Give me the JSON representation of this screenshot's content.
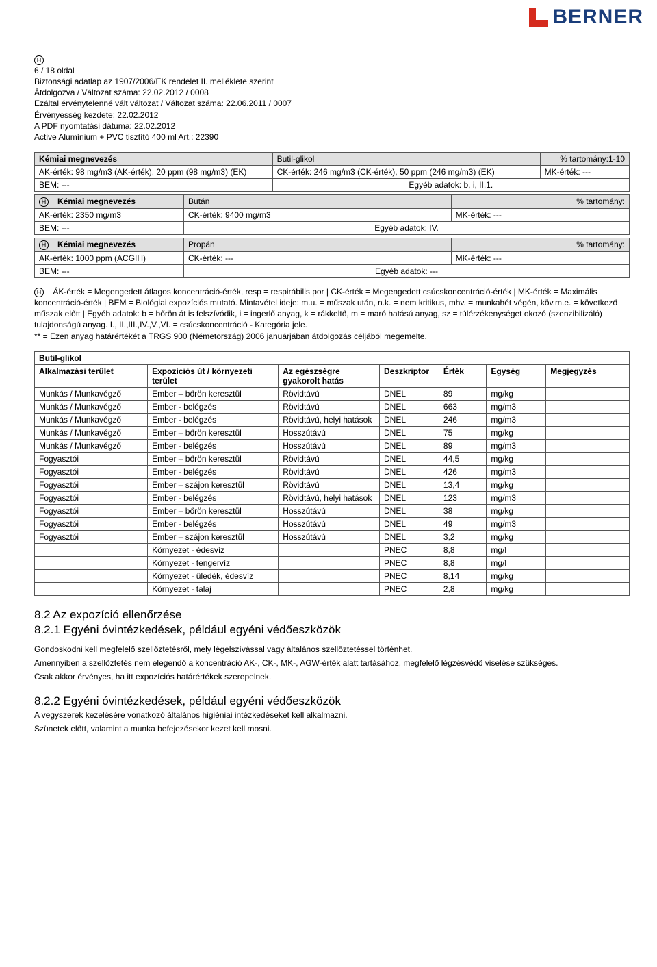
{
  "logo_text": "BERNER",
  "meta": {
    "page": "6 / 18 oldal",
    "line1": "Biztonsági adatlap az 1907/2006/EK rendelet II. melléklete szerint",
    "line2": "Átdolgozva / Változat száma: 22.02.2012 / 0008",
    "line3": "Ezáltal érvénytelenné vált változat / Változat száma: 22.06.2011  / 0007",
    "line4": "Érvényesség kezdete: 22.02.2012",
    "line5": "A PDF nyomtatási dátuma: 22.02.2012",
    "line6": "Active Alumínium + PVC tisztító 400 ml Art.: 22390"
  },
  "chem1": {
    "label": "Kémiai megnevezés",
    "name": "Butil-glikol",
    "range_label": "% tartomány:1-10",
    "ak": "AK-érték:   98 mg/m3 (AK-érték), 20 ppm (98 mg/m3) (EK)",
    "ck": "CK-érték:   246 mg/m3 (CK-érték), 50 ppm (246 mg/m3) (EK)",
    "mk": "MK-érték:  ---",
    "bem": "BEM:   ---",
    "egyeb": "Egyéb adatok:   b, i, II.1."
  },
  "chem2": {
    "label": "Kémiai megnevezés",
    "name": "Bután",
    "range_label": "% tartomány:",
    "ak": "AK-érték:   2350 mg/m3",
    "ck": "CK-érték:   9400 mg/m3",
    "mk": "MK-érték:  ---",
    "bem": "BEM:   ---",
    "egyeb": "Egyéb adatok:   IV."
  },
  "chem3": {
    "label": "Kémiai megnevezés",
    "name": "Propán",
    "range_label": "% tartomány:",
    "ak": "AK-érték:   1000 ppm (ACGIH)",
    "ck": "CK-érték:   ---",
    "mk": "MK-érték:  ---",
    "bem": "BEM:   ---",
    "egyeb": "Egyéb adatok:   ---"
  },
  "definitions": {
    "p1": "ÁK-érték = Megengedett átlagos koncentráció-érték, resp = respirábilis por | CK-érték = Megengedett csúcskoncentráció-érték | MK-érték = Maximális koncentráció-érték | BEM = Biológiai expozíciós mutató. Mintavétel ideje: m.u. = műszak után, n.k. = nem kritikus, mhv. = munkahét végén, köv.m.e. = következő műszak előtt | Egyéb adatok: b = bőrön át is felszívódik, i = ingerlő anyag, k = rákkeltő, m = maró hatású anyag, sz = túlérzékenységet okozó (szenzibilizáló) tulajdonságú anyag. I., II.,III.,IV.,V.,VI. = csúcskoncentráció - Kategória jele.",
    "p2": "** = Ezen anyag határértékét a TRGS 900 (Németország) 2006 januárjában átdolgozás céljából megemelte."
  },
  "exp": {
    "title": "Butil-glikol",
    "headers": [
      "Alkalmazási terület",
      "Expozíciós út / környezeti terület",
      "Az egészségre gyakorolt hatás",
      "Deszkriptor",
      "Érték",
      "Egység",
      "Megjegyzés"
    ],
    "rows": [
      [
        "Munkás / Munkavégző",
        "Ember – bőrön keresztül",
        "Rövidtávú",
        "DNEL",
        "89",
        "mg/kg",
        ""
      ],
      [
        "Munkás / Munkavégző",
        "Ember - belégzés",
        "Rövidtávú",
        "DNEL",
        "663",
        "mg/m3",
        ""
      ],
      [
        "Munkás / Munkavégző",
        "Ember - belégzés",
        "Rövidtávú, helyi hatások",
        "DNEL",
        "246",
        "mg/m3",
        ""
      ],
      [
        "Munkás / Munkavégző",
        "Ember – bőrön keresztül",
        "Hosszútávú",
        "DNEL",
        "75",
        "mg/kg",
        ""
      ],
      [
        "Munkás / Munkavégző",
        "Ember - belégzés",
        "Hosszútávú",
        "DNEL",
        "89",
        "mg/m3",
        ""
      ],
      [
        "Fogyasztói",
        "Ember – bőrön keresztül",
        "Rövidtávú",
        "DNEL",
        "44,5",
        "mg/kg",
        ""
      ],
      [
        "Fogyasztói",
        "Ember - belégzés",
        "Rövidtávú",
        "DNEL",
        "426",
        "mg/m3",
        ""
      ],
      [
        "Fogyasztói",
        "Ember – szájon keresztül",
        "Rövidtávú",
        "DNEL",
        "13,4",
        "mg/kg",
        ""
      ],
      [
        "Fogyasztói",
        "Ember - belégzés",
        "Rövidtávú, helyi hatások",
        "DNEL",
        "123",
        "mg/m3",
        ""
      ],
      [
        "Fogyasztói",
        "Ember – bőrön keresztül",
        "Hosszútávú",
        "DNEL",
        "38",
        "mg/kg",
        ""
      ],
      [
        "Fogyasztói",
        "Ember - belégzés",
        "Hosszútávú",
        "DNEL",
        "49",
        "mg/m3",
        ""
      ],
      [
        "Fogyasztói",
        "Ember – szájon keresztül",
        "Hosszútávú",
        "DNEL",
        "3,2",
        "mg/kg",
        ""
      ],
      [
        "",
        "Környezet - édesvíz",
        "",
        "PNEC",
        "8,8",
        "mg/l",
        ""
      ],
      [
        "",
        "Környezet - tengervíz",
        "",
        "PNEC",
        "8,8",
        "mg/l",
        ""
      ],
      [
        "",
        "Környezet - üledék, édesvíz",
        "",
        "PNEC",
        "8,14",
        "mg/kg",
        ""
      ],
      [
        "",
        "Környezet - talaj",
        "",
        "PNEC",
        "2,8",
        "mg/kg",
        ""
      ]
    ]
  },
  "h82": "8.2 Az expozíció ellenőrzése",
  "h821": "8.2.1 Egyéni óvintézkedések, például egyéni védőeszközök",
  "body821": {
    "p1": "Gondoskodni kell megfelelő szellőztetésről, mely légelszívással vagy általános szellőztetéssel történhet.",
    "p2": "Amennyiben a szellőztetés nem elegendő a koncentráció AK-, CK-, MK-, AGW-érték alatt tartásához, megfelelő légzésvédő viselése szükséges.",
    "p3": "Csak akkor érvényes, ha itt expozíciós határértékek szerepelnek."
  },
  "h822": "8.2.2 Egyéni óvintézkedések, például egyéni védőeszközök",
  "body822": {
    "p1": "A vegyszerek kezelésére vonatkozó általános higiéniai intézkedéseket kell alkalmazni.",
    "p2": "Szünetek előtt, valamint a munka befejezésekor kezet kell mosni."
  }
}
